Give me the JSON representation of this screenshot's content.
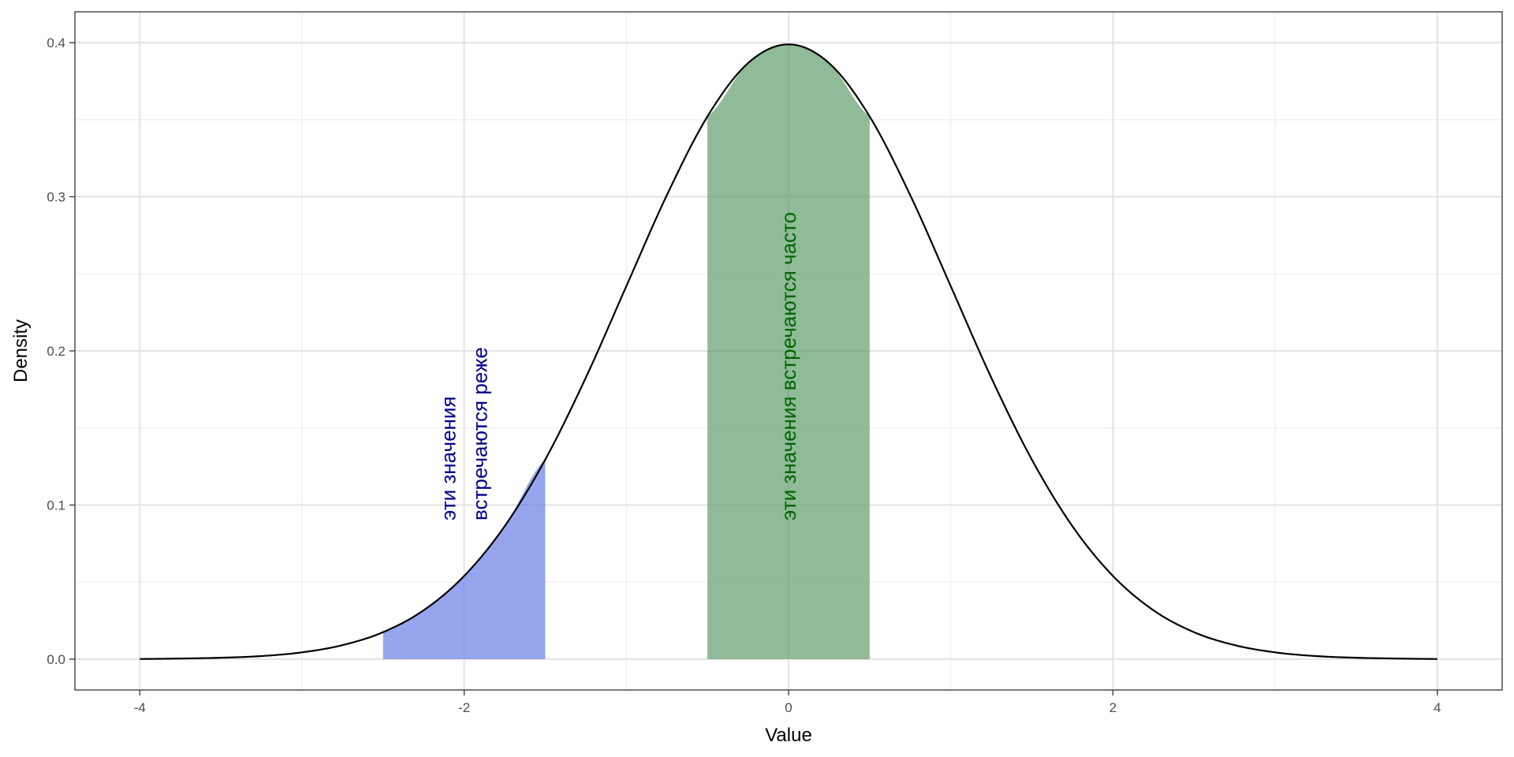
{
  "chart_data": {
    "type": "area",
    "xlabel": "Value",
    "ylabel": "Density",
    "xlim": [
      -4.4,
      4.4
    ],
    "ylim": [
      -0.02,
      0.42
    ],
    "x_ticks": [
      -4,
      -2,
      0,
      2,
      4
    ],
    "x_tick_labels": [
      "-4",
      "-2",
      "0",
      "2",
      "4"
    ],
    "x_minor_breaks": [
      -3,
      -1,
      1,
      3
    ],
    "y_ticks": [
      0.0,
      0.1,
      0.2,
      0.3,
      0.4
    ],
    "y_tick_labels": [
      "0.0",
      "0.1",
      "0.2",
      "0.3",
      "0.4"
    ],
    "y_minor_breaks": [
      0.05,
      0.15,
      0.25,
      0.35
    ],
    "grid": true,
    "series": [
      {
        "kind": "line",
        "x": [
          -4.0,
          -3.75,
          -3.5,
          -3.25,
          -3.0,
          -2.75,
          -2.5,
          -2.25,
          -2.0,
          -1.75,
          -1.5,
          -1.25,
          -1.0,
          -0.75,
          -0.5,
          -0.25,
          0.0,
          0.25,
          0.5,
          0.75,
          1.0,
          1.25,
          1.5,
          1.75,
          2.0,
          2.25,
          2.5,
          2.75,
          3.0,
          3.25,
          3.5,
          3.75,
          4.0
        ],
        "y": [
          0.0001,
          0.0004,
          0.0009,
          0.002,
          0.0044,
          0.0091,
          0.0175,
          0.0317,
          0.054,
          0.0863,
          0.1295,
          0.1826,
          0.242,
          0.3011,
          0.3521,
          0.3867,
          0.3989,
          0.3867,
          0.3521,
          0.3011,
          0.242,
          0.1826,
          0.1295,
          0.0863,
          0.054,
          0.0317,
          0.0175,
          0.0091,
          0.0044,
          0.002,
          0.0009,
          0.0004,
          0.0001
        ],
        "color": "#000000"
      },
      {
        "kind": "area",
        "x": [
          -2.5,
          -2.25,
          -2.0,
          -1.75,
          -1.5
        ],
        "y": [
          0.0175,
          0.0317,
          0.054,
          0.0863,
          0.1295
        ],
        "color": "#6a7fe6"
      },
      {
        "kind": "area",
        "x": [
          -0.5,
          -0.25,
          0.0,
          0.25,
          0.5
        ],
        "y": [
          0.3521,
          0.3867,
          0.3989,
          0.3867,
          0.3521
        ],
        "color": "#5f9e6e"
      }
    ],
    "annotations": [
      {
        "lines": [
          "эти значения",
          "встречаются реже"
        ],
        "x": -2.0,
        "y": 0.09,
        "color": "#00008b"
      },
      {
        "lines": [
          "эти значения встречаются часто"
        ],
        "x": 0.0,
        "y": 0.09,
        "color": "#006400"
      }
    ]
  }
}
